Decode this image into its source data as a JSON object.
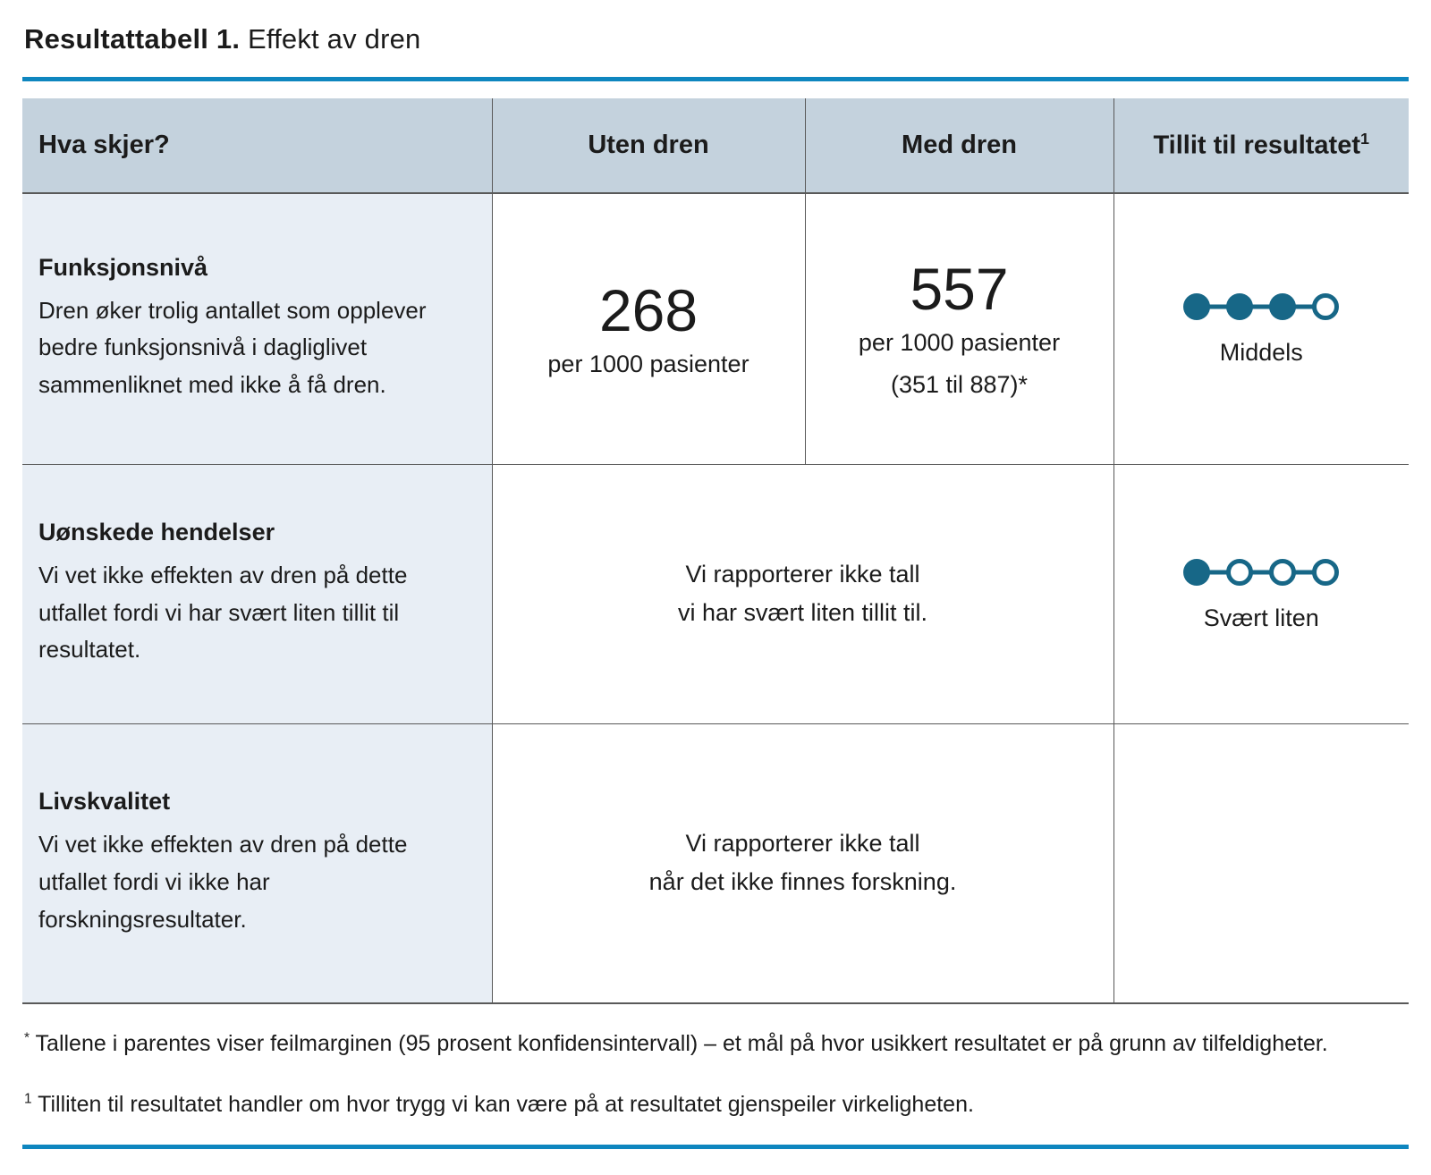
{
  "title": {
    "label_bold": "Resultattabell 1.",
    "label_regular": "Effekt av dren"
  },
  "colors": {
    "accent_line": "#0e86bf",
    "header_bg": "#c4d2dd",
    "outcome_bg": "#e8eef5",
    "dot": "#176787",
    "border": "#595959"
  },
  "table": {
    "columns": [
      {
        "label": "Hva skjer?"
      },
      {
        "label": "Uten dren"
      },
      {
        "label": "Med dren"
      },
      {
        "label": "Tillit til resultatet",
        "sup": "1"
      }
    ],
    "rows": [
      {
        "outcome": "Funksjonsnivå",
        "description": "Dren øker trolig antallet som opplever bedre funksjonsnivå i dagliglivet sammenliknet med ikke å få dren.",
        "uten_dren": {
          "value": "268",
          "unit": "per 1000 pasienter"
        },
        "med_dren": {
          "value": "557",
          "unit": "per 1000 pasienter",
          "interval": "(351 til 887)*"
        },
        "tillit": {
          "label": "Middels",
          "dots_filled": 3,
          "dots_total": 4
        }
      },
      {
        "outcome": "Uønskede hendelser",
        "description": "Vi vet ikke effekten av dren på dette utfallet fordi vi har svært liten tillit til resultatet.",
        "merged_note": {
          "line1": "Vi rapporterer ikke tall",
          "line2": "vi har svært liten tillit til."
        },
        "tillit": {
          "label": "Svært liten",
          "dots_filled": 1,
          "dots_total": 4
        }
      },
      {
        "outcome": "Livskvalitet",
        "description": "Vi vet ikke effekten av dren på dette utfallet fordi vi ikke har forskningsresultater.",
        "merged_note": {
          "line1": "Vi rapporterer ikke tall",
          "line2": "når det ikke finnes forskning."
        },
        "tillit": null
      }
    ]
  },
  "footnotes": [
    {
      "marker": "*",
      "text": "Tallene i parentes viser feilmarginen (95 prosent konfidensintervall) – et mål på hvor usikkert resultatet er på grunn av tilfeldigheter."
    },
    {
      "marker": "1",
      "text": "Tilliten til resultatet handler om hvor trygg vi kan være på at resultatet gjenspeiler virkeligheten."
    }
  ]
}
